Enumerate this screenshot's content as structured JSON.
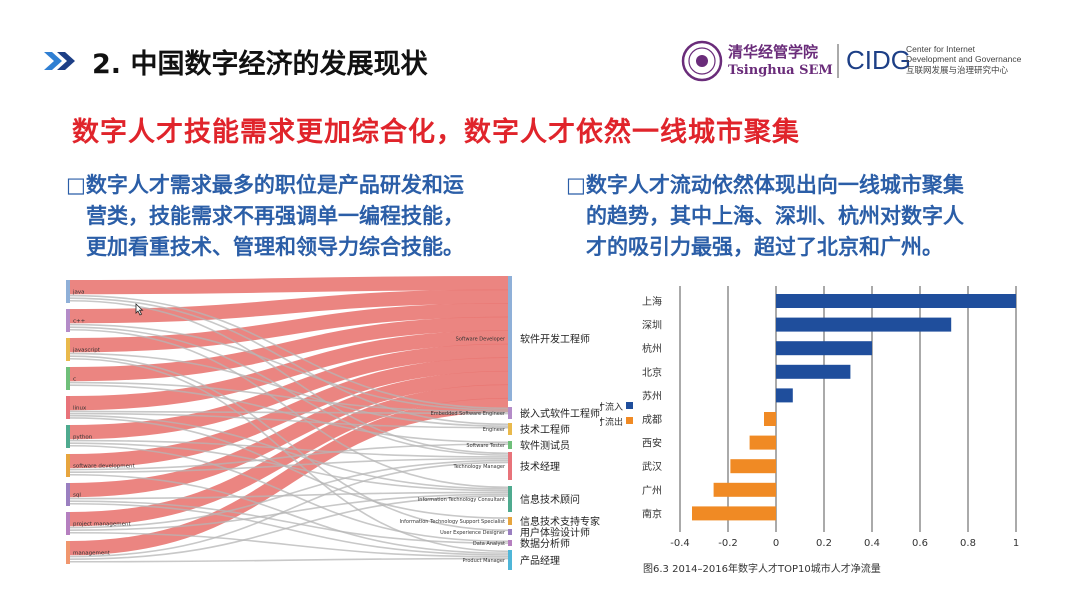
{
  "header": {
    "section_title": "2. 中国数字经济的发展现状",
    "logo_cn": "清华经管学院",
    "logo_en": "Tsinghua SEM",
    "cidg_mark": "CIDG",
    "cidg_en_line1": "Center for Internet",
    "cidg_en_line2": "Development and Governance",
    "cidg_cn": "互联网发展与治理研究中心"
  },
  "headline": "数字人才技能需求更加综合化，数字人才依然一线城市聚集",
  "bullets": {
    "left": [
      "□数字人才需求最多的职位是产品研发和运",
      "营类，技能需求不再强调单一编程技能，",
      "更加看重技术、管理和领导力综合技能。"
    ],
    "right": [
      "□数字人才流动依然体现出向一线城市聚集",
      "的趋势，其中上海、深圳、杭州对数字人",
      "才的吸引力最强，超过了北京和广州。"
    ]
  },
  "chart_data": [
    {
      "type": "sankey",
      "sources": [
        "java",
        "c++",
        "javascript",
        "c",
        "linux",
        "python",
        "software development",
        "sql",
        "project management",
        "management"
      ],
      "targets": [
        {
          "en": "Software Developer",
          "cn": "软件开发工程师"
        },
        {
          "en": "Embedded Software Engineer",
          "cn": "嵌入式软件工程师"
        },
        {
          "en": "Engineer",
          "cn": "技术工程师"
        },
        {
          "en": "Software Tester",
          "cn": "软件测试员"
        },
        {
          "en": "Technology Manager",
          "cn": "技术经理"
        },
        {
          "en": "Information Technology Consultant",
          "cn": "信息技术顾问"
        },
        {
          "en": "Information Technology Support Specialist",
          "cn": "信息技术支持专家"
        },
        {
          "en": "User Experience Designer",
          "cn": "用户体验设计师"
        },
        {
          "en": "Data Analyst",
          "cn": "数据分析师"
        },
        {
          "en": "Product Manager",
          "cn": "产品经理"
        }
      ],
      "source_colors": [
        "#8fb0d8",
        "#b48cc8",
        "#e9b94c",
        "#6fbf7a",
        "#e8737a",
        "#4faa8f",
        "#e7a53e",
        "#9a7fc0",
        "#b57fbf",
        "#f0966e"
      ],
      "link_colors": {
        "to_software_developer": "#e8746f",
        "other": "#b5b5b5"
      }
    },
    {
      "type": "bar",
      "orientation": "horizontal",
      "categories": [
        "上海",
        "深圳",
        "杭州",
        "北京",
        "苏州",
        "成都",
        "西安",
        "武汉",
        "广州",
        "南京"
      ],
      "values": [
        1.0,
        0.73,
        0.4,
        0.31,
        0.07,
        -0.05,
        -0.11,
        -0.19,
        -0.26,
        -0.35
      ],
      "xlim": [
        -0.4,
        1.0
      ],
      "x_ticks": [
        "-0.4",
        "-0.2",
        "0",
        "0.2",
        "0.4",
        "0.6",
        "0.8",
        "1"
      ],
      "grid": true,
      "legend": [
        {
          "name": "才流入",
          "color": "#1f4e9c"
        },
        {
          "name": "才流出",
          "color": "#f08a24"
        }
      ],
      "legend_position": "left",
      "caption": "图6.3 2014–2016年数字人才TOP10城市人才净流量"
    }
  ]
}
